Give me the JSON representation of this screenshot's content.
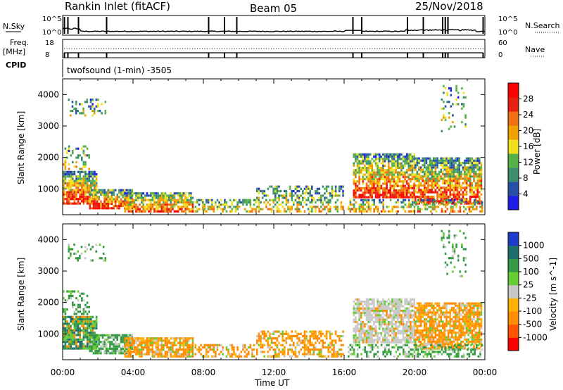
{
  "header": {
    "title": "Rankin Inlet (fitACF)",
    "beam": "Beam 05",
    "date": "25/Nov/2018"
  },
  "strips": {
    "nsky_label": "N.Sky",
    "nsearch_label": "N.Search",
    "nsky_ticks": [
      "10^5",
      "10^0"
    ],
    "freq_label_1": "Freq.",
    "freq_label_2": "[MHz]",
    "freq_ticks": [
      "18",
      "8"
    ],
    "nave_label": "Nave",
    "nave_ticks": [
      "60",
      "0"
    ],
    "cpid_label": "CPID",
    "cpid_text": "twofsound (1-min) -3505"
  },
  "colors": {
    "power": [
      "#1e1ee6",
      "#2850a8",
      "#3c8c6e",
      "#58b04a",
      "#f0e020",
      "#f0a000",
      "#f07010",
      "#e82010",
      "#ff0000"
    ],
    "velocity": [
      "#ff0000",
      "#ff5500",
      "#ff8c00",
      "#ffb000",
      "#c8c8c8",
      "#66cc33",
      "#339944",
      "#1e6e6e",
      "#1e3ccc"
    ],
    "ground_scatter": "#c8c8c8"
  },
  "chart_data": [
    {
      "type": "heatmap",
      "name": "power",
      "xlabel": "",
      "ylabel": "Slant Range [km]",
      "ylim": [
        180,
        4500
      ],
      "xlim_hours": [
        0,
        24
      ],
      "yticks": [
        1000,
        2000,
        3000,
        4000
      ],
      "colorbar_label": "Power [dB]",
      "colorbar_ticks": [
        4,
        8,
        12,
        16,
        20,
        24,
        28
      ],
      "colorbar_range": [
        0,
        32
      ]
    },
    {
      "type": "heatmap",
      "name": "velocity",
      "xlabel": "Time UT",
      "ylabel": "Slant Range [km]",
      "ylim": [
        180,
        4500
      ],
      "xlim_hours": [
        0,
        24
      ],
      "yticks": [
        1000,
        2000,
        3000,
        4000
      ],
      "colorbar_label": "Velocity [m s^-1]",
      "colorbar_ticks": [
        "1000",
        "500",
        "100",
        "25",
        "-25",
        "-100",
        "-500",
        "-1000"
      ]
    }
  ],
  "xaxis": {
    "label": "Time UT",
    "ticks": [
      "00:00",
      "04:00",
      "08:00",
      "12:00",
      "16:00",
      "20:00",
      "00:00"
    ]
  }
}
